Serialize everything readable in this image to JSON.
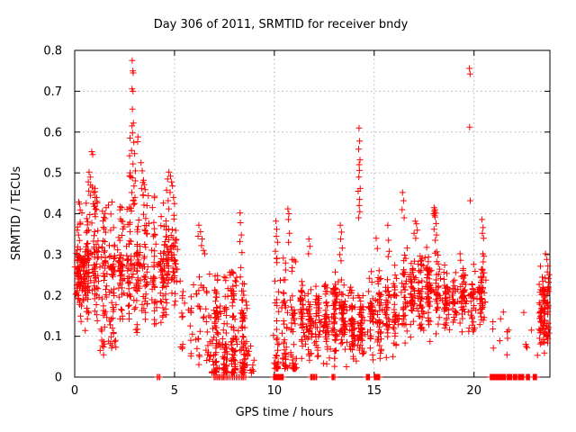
{
  "chart_data": {
    "type": "scatter",
    "title": "Day 306 of 2011, SRMTID for receiver bndy",
    "xlabel": "GPS time / hours",
    "ylabel": "SRMTID / TECUs",
    "xlim": [
      0,
      23.8
    ],
    "ylim": [
      0,
      0.8
    ],
    "xticks": [
      0,
      5,
      10,
      15,
      20
    ],
    "yticks": [
      0,
      0.1,
      0.2,
      0.3,
      0.4,
      0.5,
      0.6,
      0.7,
      0.8
    ],
    "grid": true,
    "legend": "none",
    "marker": "+",
    "marker_color": "#ff0000",
    "grid_color": "#b0b0b0",
    "axis_color": "#000000",
    "seed": 1337,
    "points": [
      [
        0.72,
        0.502
      ],
      [
        0.78,
        0.49
      ],
      [
        0.85,
        0.552
      ],
      [
        0.9,
        0.545
      ],
      [
        0.8,
        0.47
      ],
      [
        0.88,
        0.465
      ],
      [
        0.95,
        0.452
      ],
      [
        1.02,
        0.462
      ],
      [
        1.1,
        0.44
      ],
      [
        0.68,
        0.478
      ],
      [
        2.88,
        0.775
      ],
      [
        2.91,
        0.75
      ],
      [
        2.93,
        0.745
      ],
      [
        2.87,
        0.706
      ],
      [
        2.92,
        0.7
      ],
      [
        2.89,
        0.656
      ],
      [
        2.94,
        0.622
      ],
      [
        2.87,
        0.615
      ],
      [
        2.9,
        0.598
      ],
      [
        2.96,
        0.575
      ],
      [
        2.85,
        0.555
      ],
      [
        3.0,
        0.547
      ],
      [
        2.92,
        0.522
      ],
      [
        3.04,
        0.505
      ],
      [
        2.89,
        0.488
      ],
      [
        2.97,
        0.468
      ],
      [
        2.86,
        0.452
      ],
      [
        3.02,
        0.44
      ],
      [
        2.95,
        0.432
      ],
      [
        3.32,
        0.525
      ],
      [
        3.38,
        0.505
      ],
      [
        3.45,
        0.482
      ],
      [
        3.35,
        0.462
      ],
      [
        3.42,
        0.445
      ],
      [
        4.72,
        0.502
      ],
      [
        4.8,
        0.492
      ],
      [
        4.65,
        0.485
      ],
      [
        4.85,
        0.478
      ],
      [
        4.9,
        0.468
      ],
      [
        4.6,
        0.458
      ],
      [
        4.78,
        0.452
      ],
      [
        4.95,
        0.44
      ],
      [
        4.68,
        0.432
      ],
      [
        5.0,
        0.425
      ],
      [
        6.22,
        0.372
      ],
      [
        6.3,
        0.356
      ],
      [
        6.18,
        0.345
      ],
      [
        6.38,
        0.338
      ],
      [
        6.35,
        0.322
      ],
      [
        6.45,
        0.31
      ],
      [
        6.52,
        0.302
      ],
      [
        8.28,
        0.402
      ],
      [
        8.3,
        0.378
      ],
      [
        8.35,
        0.348
      ],
      [
        8.27,
        0.332
      ],
      [
        8.38,
        0.305
      ],
      [
        8.32,
        0.268
      ],
      [
        8.3,
        0.245
      ],
      [
        10.08,
        0.382
      ],
      [
        10.12,
        0.362
      ],
      [
        10.1,
        0.345
      ],
      [
        10.16,
        0.33
      ],
      [
        10.05,
        0.308
      ],
      [
        10.13,
        0.29
      ],
      [
        10.68,
        0.412
      ],
      [
        10.73,
        0.4
      ],
      [
        10.7,
        0.386
      ],
      [
        10.76,
        0.352
      ],
      [
        10.71,
        0.33
      ],
      [
        11.73,
        0.338
      ],
      [
        11.78,
        0.32
      ],
      [
        11.71,
        0.302
      ],
      [
        13.3,
        0.372
      ],
      [
        13.36,
        0.355
      ],
      [
        13.32,
        0.338
      ],
      [
        13.4,
        0.316
      ],
      [
        13.28,
        0.3
      ],
      [
        13.34,
        0.285
      ],
      [
        14.24,
        0.61
      ],
      [
        14.27,
        0.578
      ],
      [
        14.22,
        0.558
      ],
      [
        14.29,
        0.532
      ],
      [
        14.25,
        0.52
      ],
      [
        14.26,
        0.506
      ],
      [
        14.23,
        0.49
      ],
      [
        14.3,
        0.462
      ],
      [
        14.2,
        0.455
      ],
      [
        14.27,
        0.435
      ],
      [
        14.25,
        0.42
      ],
      [
        14.28,
        0.405
      ],
      [
        14.22,
        0.39
      ],
      [
        15.1,
        0.34
      ],
      [
        15.16,
        0.315
      ],
      [
        15.68,
        0.372
      ],
      [
        15.72,
        0.335
      ],
      [
        15.75,
        0.308
      ],
      [
        15.7,
        0.295
      ],
      [
        16.42,
        0.452
      ],
      [
        16.47,
        0.432
      ],
      [
        16.4,
        0.41
      ],
      [
        16.5,
        0.39
      ],
      [
        17.05,
        0.382
      ],
      [
        17.12,
        0.375
      ],
      [
        17.16,
        0.36
      ],
      [
        17.0,
        0.352
      ],
      [
        17.08,
        0.34
      ],
      [
        18.0,
        0.415
      ],
      [
        18.04,
        0.41
      ],
      [
        18.02,
        0.406
      ],
      [
        18.07,
        0.402
      ],
      [
        17.98,
        0.4
      ],
      [
        18.03,
        0.396
      ],
      [
        18.05,
        0.392
      ],
      [
        18.1,
        0.376
      ],
      [
        18.0,
        0.362
      ],
      [
        18.12,
        0.348
      ],
      [
        18.06,
        0.335
      ],
      [
        19.3,
        0.302
      ],
      [
        19.33,
        0.286
      ],
      [
        19.77,
        0.756
      ],
      [
        19.8,
        0.742
      ],
      [
        19.78,
        0.612
      ],
      [
        19.81,
        0.432
      ],
      [
        20.4,
        0.386
      ],
      [
        20.45,
        0.366
      ],
      [
        20.42,
        0.352
      ],
      [
        20.48,
        0.34
      ],
      [
        20.44,
        0.302
      ],
      [
        20.5,
        0.296
      ],
      [
        20.46,
        0.282
      ],
      [
        20.43,
        0.262
      ],
      [
        20.47,
        0.245
      ],
      [
        23.58,
        0.302
      ],
      [
        23.65,
        0.288
      ],
      [
        23.7,
        0.272
      ]
    ],
    "clusters": [
      {
        "t": [
          0.0,
          0.65
        ],
        "v": [
          0.17,
          0.34
        ],
        "n": 70,
        "dist": "center"
      },
      {
        "t": [
          0.05,
          4.6
        ],
        "v": [
          0.1,
          0.45
        ],
        "n": 480,
        "dist": "center"
      },
      {
        "t": [
          0.55,
          1.15
        ],
        "v": [
          0.4,
          0.48
        ],
        "n": 10,
        "dist": "uniform"
      },
      {
        "t": [
          1.2,
          2.2
        ],
        "v": [
          0.05,
          0.12
        ],
        "n": 20,
        "dist": "uniform"
      },
      {
        "t": [
          2.72,
          3.18
        ],
        "v": [
          0.42,
          0.6
        ],
        "n": 10,
        "dist": "uniform"
      },
      {
        "t": [
          3.25,
          3.6
        ],
        "v": [
          0.36,
          0.48
        ],
        "n": 6,
        "dist": "uniform"
      },
      {
        "t": [
          4.45,
          5.15
        ],
        "v": [
          0.15,
          0.43
        ],
        "n": 80,
        "dist": "center"
      },
      {
        "t": [
          5.2,
          6.9
        ],
        "v": [
          0.03,
          0.26
        ],
        "n": 60,
        "dist": "uniform"
      },
      {
        "t": [
          6.85,
          8.65
        ],
        "v": [
          0.01,
          0.26
        ],
        "n": 240,
        "dist": "bottom"
      },
      {
        "t": [
          8.6,
          9.0
        ],
        "v": [
          0.01,
          0.14
        ],
        "n": 12,
        "dist": "bottom"
      },
      {
        "t": [
          9.95,
          11.15
        ],
        "v": [
          0.02,
          0.3
        ],
        "n": 120,
        "dist": "bottom"
      },
      {
        "t": [
          11.2,
          12.35
        ],
        "v": [
          0.03,
          0.24
        ],
        "n": 120,
        "dist": "center"
      },
      {
        "t": [
          12.4,
          13.65
        ],
        "v": [
          0.02,
          0.26
        ],
        "n": 150,
        "dist": "center"
      },
      {
        "t": [
          13.7,
          14.55
        ],
        "v": [
          0.02,
          0.23
        ],
        "n": 100,
        "dist": "center"
      },
      {
        "t": [
          14.65,
          16.25
        ],
        "v": [
          0.03,
          0.28
        ],
        "n": 150,
        "dist": "center"
      },
      {
        "t": [
          16.3,
          18.35
        ],
        "v": [
          0.08,
          0.33
        ],
        "n": 210,
        "dist": "center"
      },
      {
        "t": [
          18.4,
          19.65
        ],
        "v": [
          0.1,
          0.28
        ],
        "n": 110,
        "dist": "center"
      },
      {
        "t": [
          19.7,
          20.6
        ],
        "v": [
          0.1,
          0.28
        ],
        "n": 80,
        "dist": "center"
      },
      {
        "t": [
          20.7,
          23.2
        ],
        "v": [
          0.05,
          0.2
        ],
        "n": 16,
        "dist": "uniform"
      },
      {
        "t": [
          23.25,
          23.78
        ],
        "v": [
          0.05,
          0.28
        ],
        "n": 100,
        "dist": "center"
      }
    ],
    "zero_runs": [
      [
        4.12,
        4.28,
        3
      ],
      [
        6.95,
        7.6,
        10
      ],
      [
        7.6,
        8.3,
        8
      ],
      [
        8.3,
        8.6,
        4
      ],
      [
        9.95,
        10.45,
        26
      ],
      [
        11.8,
        12.15,
        8
      ],
      [
        12.85,
        13.05,
        4
      ],
      [
        14.6,
        14.78,
        8
      ],
      [
        15.0,
        15.28,
        18
      ],
      [
        20.8,
        21.6,
        34
      ],
      [
        21.65,
        21.9,
        10
      ],
      [
        21.95,
        22.15,
        8
      ],
      [
        22.2,
        22.5,
        12
      ],
      [
        22.6,
        22.8,
        8
      ],
      [
        22.95,
        23.15,
        8
      ]
    ]
  }
}
